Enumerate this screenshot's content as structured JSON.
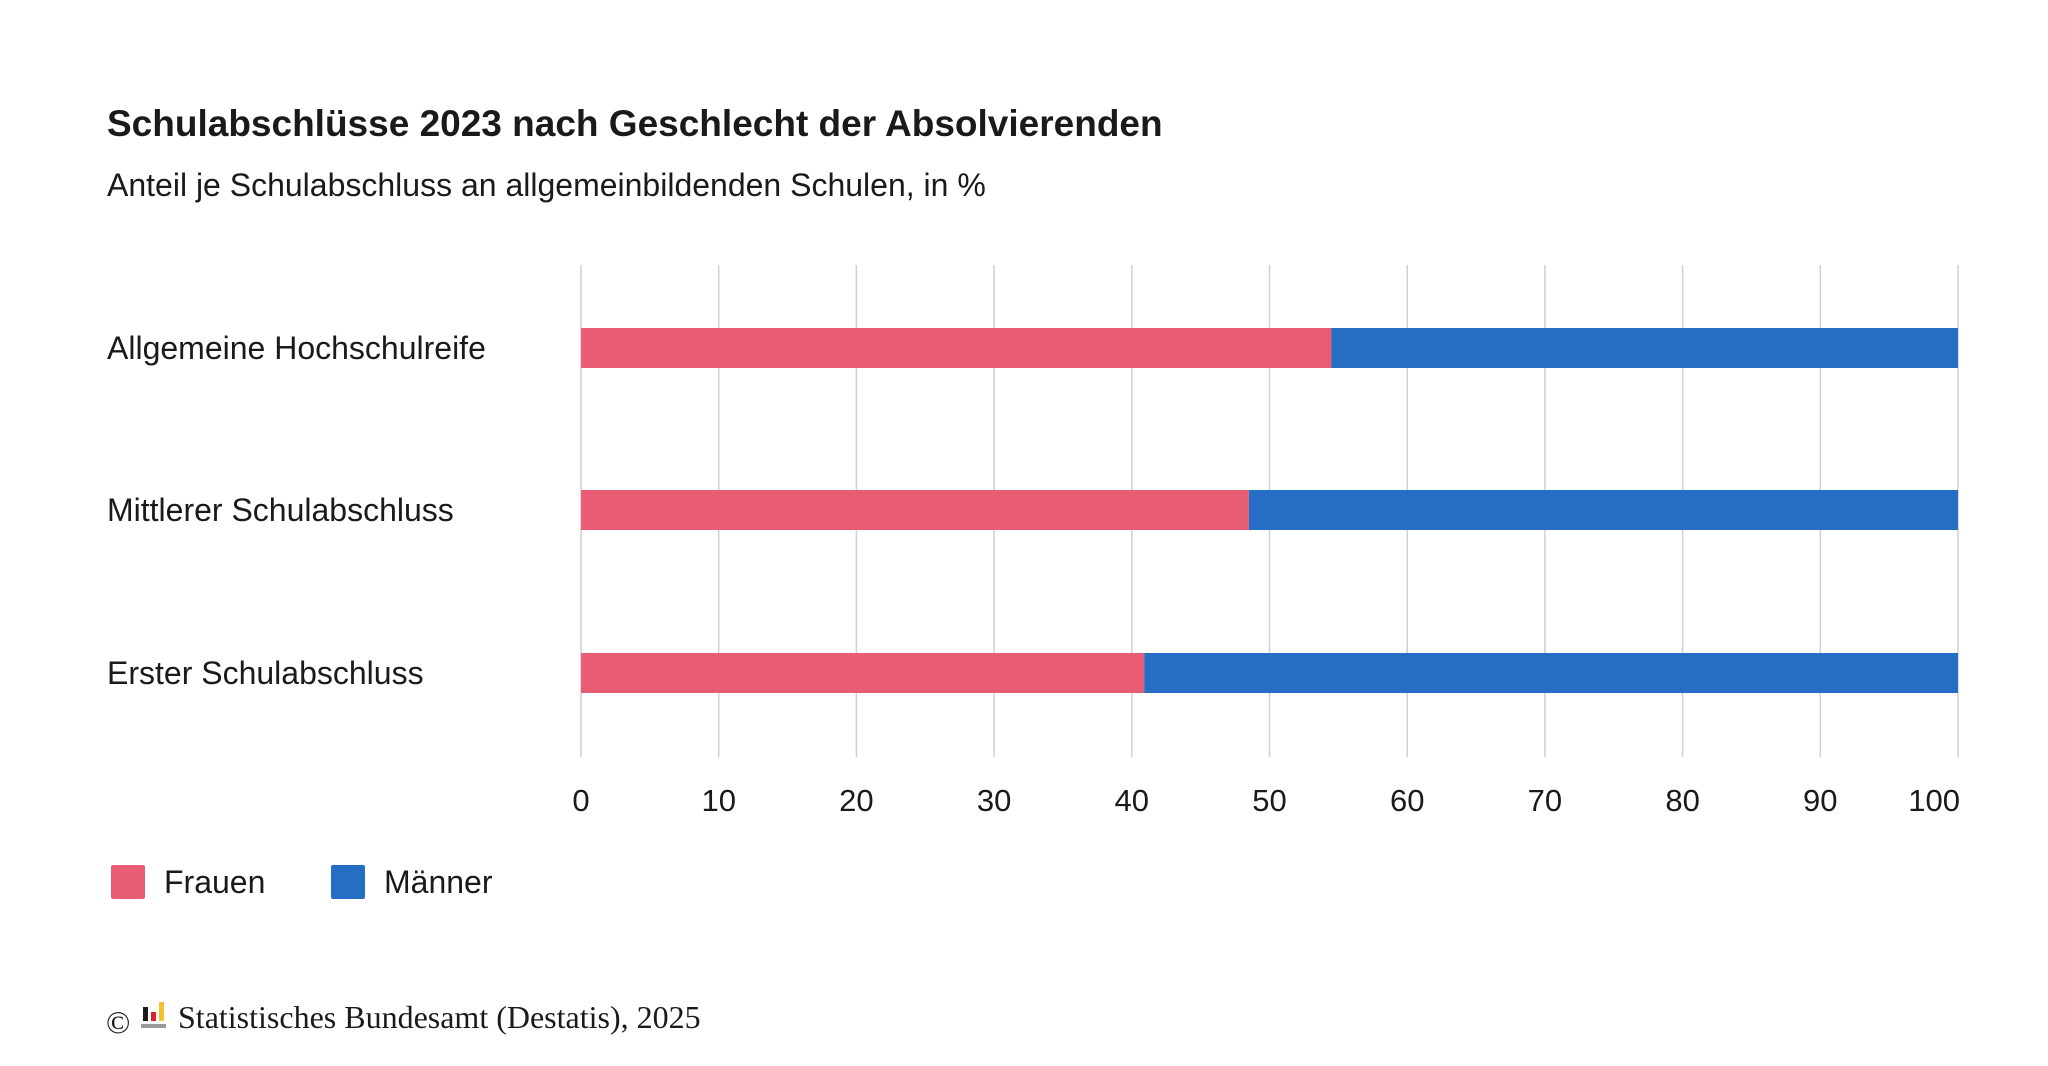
{
  "chart_data": {
    "type": "bar",
    "orientation": "horizontal",
    "stacked": true,
    "title": "Schulabschlüsse 2023 nach Geschlecht der Absolvierenden",
    "subtitle": "Anteil je Schulabschluss an allgemeinbildenden Schulen, in %",
    "categories": [
      "Allgemeine Hochschulreife",
      "Mittlerer Schulabschluss",
      "Erster Schulabschluss"
    ],
    "series": [
      {
        "name": "Frauen",
        "color": "#e85d73",
        "values": [
          54.5,
          48.5,
          40.9
        ]
      },
      {
        "name": "Männer",
        "color": "#256ec4",
        "values": [
          45.5,
          51.5,
          59.1
        ]
      }
    ],
    "xlim": [
      0,
      100
    ],
    "xticks": [
      "0",
      "10",
      "20",
      "30",
      "40",
      "50",
      "60",
      "70",
      "80",
      "90",
      "100"
    ],
    "grid": true,
    "legend_position": "bottom-left",
    "xlabel": "",
    "ylabel": ""
  },
  "source": {
    "copyright_symbol": "©",
    "text": "Statistisches Bundesamt (Destatis), 2025",
    "logo_colors": [
      "#1a1a1a",
      "#d8262d",
      "#f2c230"
    ]
  }
}
